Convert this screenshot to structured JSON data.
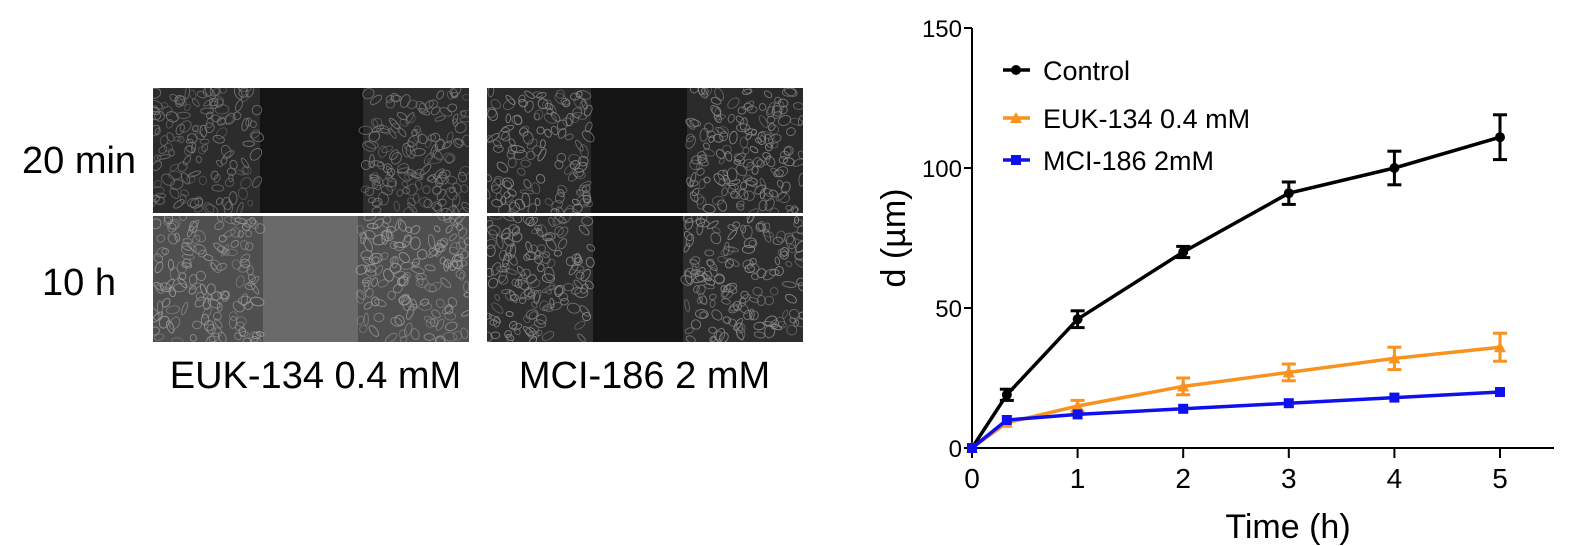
{
  "micrographs": {
    "row_labels": [
      "20 min",
      "10 h"
    ],
    "column_labels": [
      "EUK-134 0.4 mM",
      "MCI-186 2 mM"
    ]
  },
  "chart_data": {
    "type": "line",
    "title": "",
    "xlabel": "Time (h)",
    "ylabel": "d (µm)",
    "xlim": [
      0,
      5.5
    ],
    "ylim": [
      0,
      150
    ],
    "x_ticks": [
      0,
      1,
      2,
      3,
      4,
      5
    ],
    "y_ticks": [
      0,
      50,
      100,
      150
    ],
    "legend_position": "top-left",
    "grid": false,
    "x": [
      0,
      0.33,
      1,
      2,
      3,
      4,
      5
    ],
    "series": [
      {
        "name": "Control",
        "color": "#000000",
        "marker": "circle",
        "values": [
          0,
          19,
          46,
          70,
          91,
          100,
          111
        ],
        "errors": [
          1,
          2,
          3,
          2,
          4,
          6,
          8
        ]
      },
      {
        "name": "EUK-134 0.4 mM",
        "color": "#f7931e",
        "marker": "triangle",
        "values": [
          0,
          9,
          15,
          22,
          27,
          32,
          36
        ],
        "errors": [
          1,
          1,
          2,
          3,
          3,
          4,
          5
        ]
      },
      {
        "name": "MCI-186 2mM",
        "color": "#1010ee",
        "marker": "square",
        "values": [
          0,
          10,
          12,
          14,
          16,
          18,
          20
        ],
        "errors": [
          0.5,
          1,
          1,
          1,
          1,
          1,
          1
        ]
      }
    ]
  }
}
